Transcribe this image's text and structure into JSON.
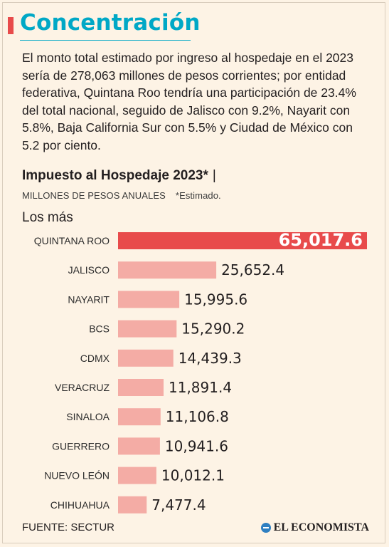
{
  "header": {
    "title": "Concentración",
    "intro": "El monto total estimado por ingreso al hospedaje en el 2023 sería de 278,063 millones de pesos corrientes; por entidad federativa, Quintana Roo tendría una participación de 23.4% del total nacional, seguido de Jalisco con  9.2%, Nayarit con 5.8%, Baja California Sur con 5.5% y Ciudad de México con 5.2 por ciento."
  },
  "chart_data": {
    "type": "bar",
    "orientation": "horizontal",
    "title": "Impuesto al Hospedaje 2023*",
    "title_separator": "|",
    "subtitle": "MILLONES DE PESOS ANUALES",
    "note": "*Estimado.",
    "section": "Los más",
    "categories": [
      "QUINTANA ROO",
      "JALISCO",
      "NAYARIT",
      "BCS",
      "CDMX",
      "VERACRUZ",
      "SINALOA",
      "GUERRERO",
      "NUEVO LEÓN",
      "CHIHUAHUA"
    ],
    "values": [
      65017.6,
      25652.4,
      15995.6,
      15290.2,
      14439.3,
      11891.4,
      11106.8,
      10941.6,
      10012.1,
      7477.4
    ],
    "value_labels": [
      "65,017.6",
      "25,652.4",
      "15,995.6",
      "15,290.2",
      "14,439.3",
      "11,891.4",
      "11,106.8",
      "10,941.6",
      "10,012.1",
      "7,477.4"
    ],
    "highlight_index": 0,
    "colors": {
      "highlight": "#e84b4b",
      "bar": "#f4aca5"
    }
  },
  "footer": {
    "source": "FUENTE: SECTUR",
    "brand": "EL ECONOMISTA"
  }
}
